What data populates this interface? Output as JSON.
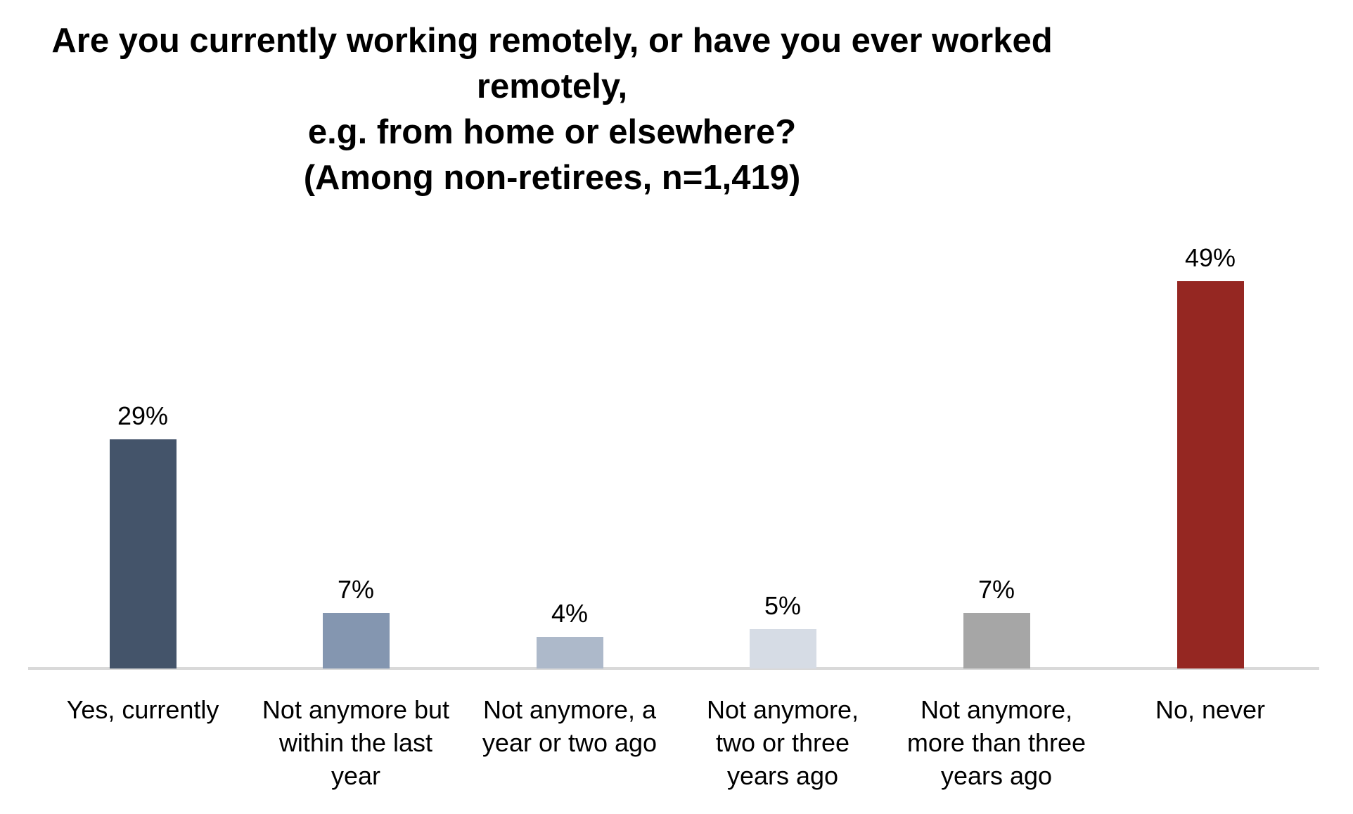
{
  "title": {
    "line1": "Are you currently working remotely, or have you ever worked remotely,",
    "line2": "e.g. from home or elsewhere?",
    "line3": "(Among non-retirees, n=1,419)"
  },
  "chart_data": {
    "type": "bar",
    "title": "Are you currently working remotely, or have you ever worked remotely, e.g. from home or elsewhere? (Among non-retirees, n=1,419)",
    "categories": [
      "Yes, currently",
      "Not anymore but within the last year",
      "Not anymore, a year or two ago",
      "Not anymore, two or three years ago",
      "Not anymore, more than three years ago",
      "No, never"
    ],
    "categories_lines": [
      [
        "Yes, currently"
      ],
      [
        "Not anymore but",
        "within the last",
        "year"
      ],
      [
        "Not anymore, a",
        "year or two ago"
      ],
      [
        "Not anymore,",
        "two or three",
        "years ago"
      ],
      [
        "Not anymore,",
        "more than three",
        "years ago"
      ],
      [
        "No, never"
      ]
    ],
    "values": [
      29,
      7,
      4,
      5,
      7,
      49
    ],
    "value_labels": [
      "29%",
      "7%",
      "4%",
      "5%",
      "7%",
      "49%"
    ],
    "bar_colors": [
      "#44546A",
      "#8496B0",
      "#ADB9CA",
      "#D6DCE5",
      "#A6A6A6",
      "#952722"
    ],
    "xlabel": "",
    "ylabel": "",
    "ylim": [
      0,
      55
    ],
    "grid": false,
    "legend": false,
    "axis_line_color": "#D9D9D9",
    "data_label_position": "above-bar"
  }
}
